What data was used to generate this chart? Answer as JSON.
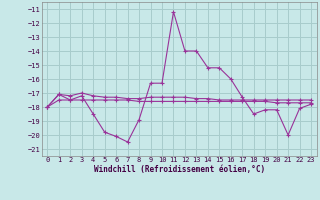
{
  "xlabel": "Windchill (Refroidissement éolien,°C)",
  "background_color": "#c8e8e8",
  "grid_color": "#a8cccc",
  "line_color": "#993399",
  "ylim": [
    -21.5,
    -10.5
  ],
  "xlim": [
    -0.5,
    23.5
  ],
  "yticks": [
    -21,
    -20,
    -19,
    -18,
    -17,
    -16,
    -15,
    -14,
    -13,
    -12,
    -11
  ],
  "xticks": [
    0,
    1,
    2,
    3,
    4,
    5,
    6,
    7,
    8,
    9,
    10,
    11,
    12,
    13,
    14,
    15,
    16,
    17,
    18,
    19,
    20,
    21,
    22,
    23
  ],
  "series": [
    {
      "x": [
        0,
        1,
        2,
        3,
        4,
        5,
        6,
        7,
        8,
        9,
        10,
        11,
        12,
        13,
        14,
        15,
        16,
        17,
        18,
        19,
        20,
        21,
        22,
        23
      ],
      "y": [
        -18.0,
        -17.1,
        -17.5,
        -17.2,
        -18.5,
        -19.8,
        -20.1,
        -20.5,
        -18.9,
        -16.3,
        -16.3,
        -11.2,
        -14.0,
        -14.0,
        -15.2,
        -15.2,
        -16.0,
        -17.3,
        -18.5,
        -18.2,
        -18.2,
        -20.0,
        -18.1,
        -17.8
      ]
    },
    {
      "x": [
        0,
        1,
        2,
        3,
        4,
        5,
        6,
        7,
        8,
        9,
        10,
        11,
        12,
        13,
        14,
        15,
        16,
        17,
        18,
        19,
        20,
        21,
        22,
        23
      ],
      "y": [
        -18.0,
        -17.5,
        -17.5,
        -17.5,
        -17.5,
        -17.5,
        -17.5,
        -17.5,
        -17.6,
        -17.6,
        -17.6,
        -17.6,
        -17.6,
        -17.6,
        -17.6,
        -17.6,
        -17.6,
        -17.6,
        -17.6,
        -17.6,
        -17.7,
        -17.7,
        -17.7,
        -17.7
      ]
    },
    {
      "x": [
        0,
        1,
        2,
        3,
        4,
        5,
        6,
        7,
        8,
        9,
        10,
        11,
        12,
        13,
        14,
        15,
        16,
        17,
        18,
        19,
        20,
        21,
        22,
        23
      ],
      "y": [
        -18.0,
        -17.1,
        -17.2,
        -17.0,
        -17.2,
        -17.3,
        -17.3,
        -17.4,
        -17.4,
        -17.3,
        -17.3,
        -17.3,
        -17.3,
        -17.4,
        -17.4,
        -17.5,
        -17.5,
        -17.5,
        -17.5,
        -17.5,
        -17.5,
        -17.5,
        -17.5,
        -17.5
      ]
    }
  ]
}
